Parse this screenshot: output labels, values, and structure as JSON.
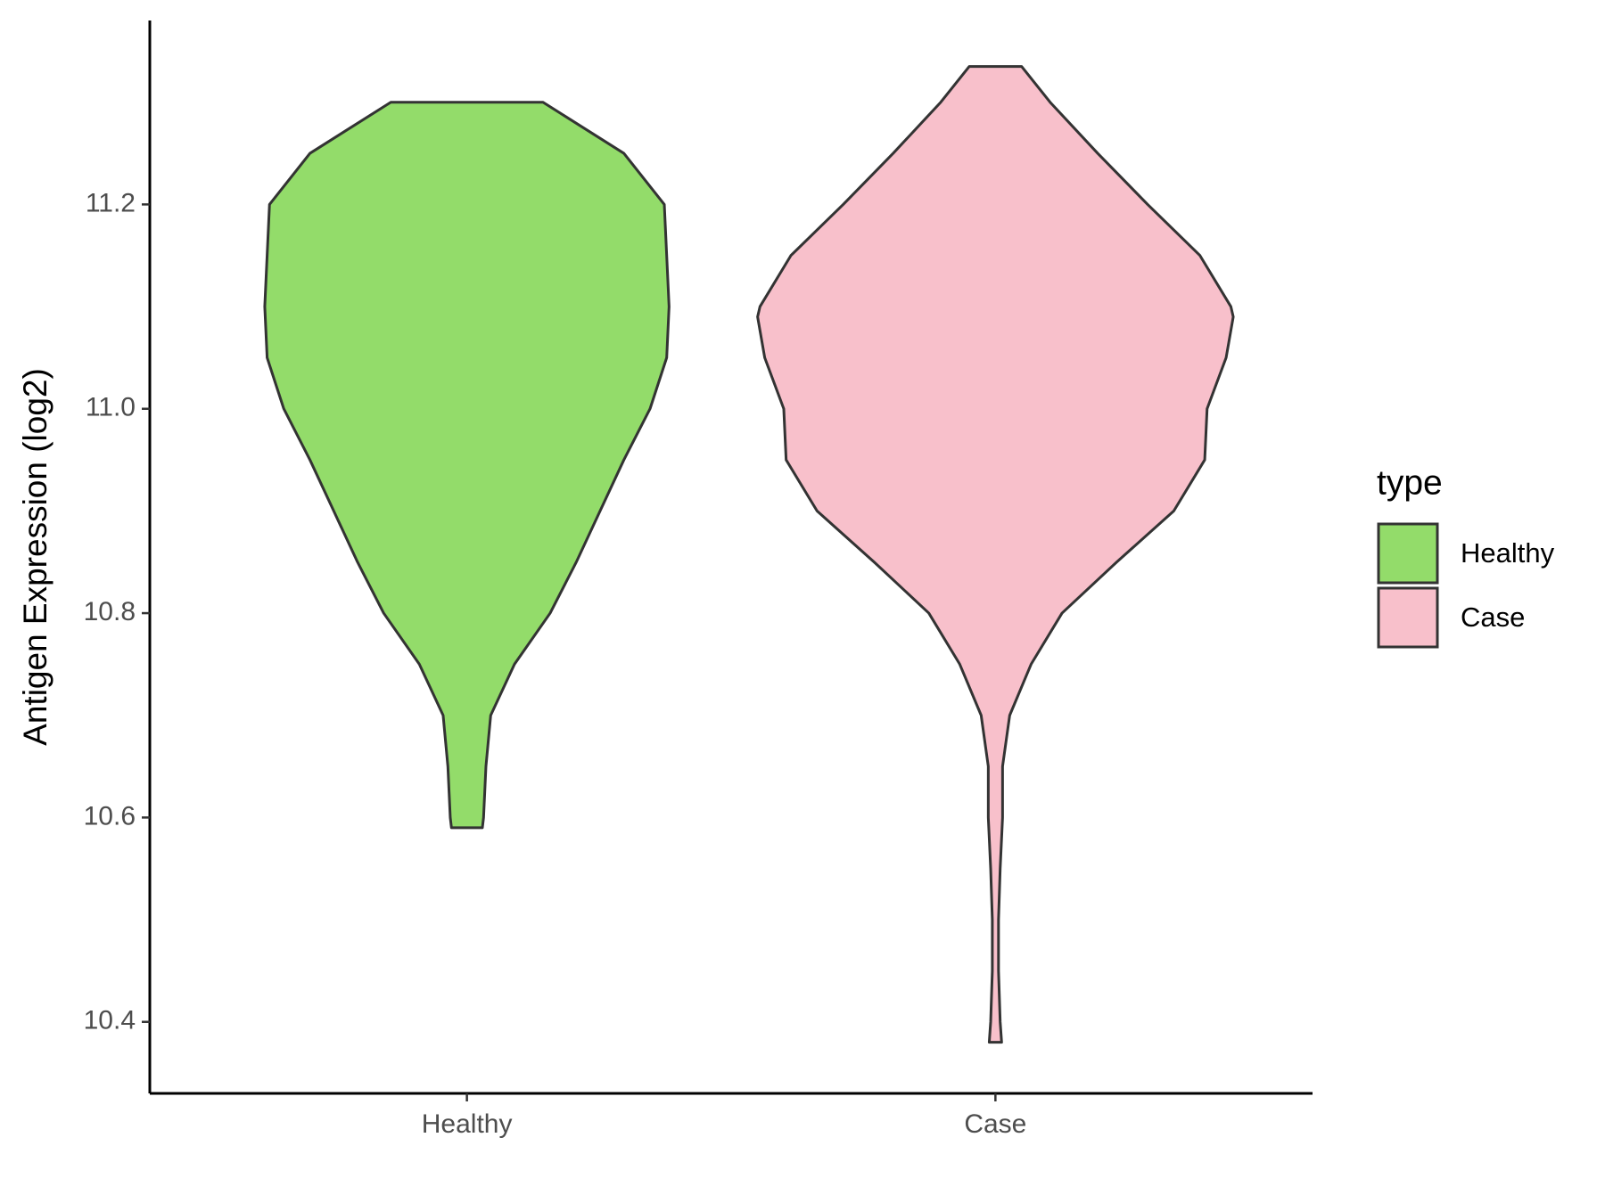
{
  "chart_data": {
    "type": "violin",
    "y_label": "Antigen Expression (log2)",
    "categories": [
      "Healthy",
      "Case"
    ],
    "ylim": [
      10.33,
      11.38
    ],
    "yticks": [
      {
        "value": 10.4,
        "label": "10.4"
      },
      {
        "value": 10.6,
        "label": "10.6"
      },
      {
        "value": 10.8,
        "label": "10.8"
      },
      {
        "value": 11.0,
        "label": "11.0"
      },
      {
        "value": 11.2,
        "label": "11.2"
      }
    ],
    "legend_title": "type",
    "legend_position": "right",
    "series": [
      {
        "name": "Healthy",
        "color": "#93dc6a",
        "y": [
          11.3,
          11.25,
          11.2,
          11.15,
          11.1,
          11.05,
          11.0,
          10.95,
          10.9,
          10.85,
          10.8,
          10.75,
          10.7,
          10.65,
          10.6,
          10.59
        ],
        "density": [
          0.32,
          0.66,
          0.83,
          0.84,
          0.85,
          0.84,
          0.77,
          0.66,
          0.56,
          0.46,
          0.35,
          0.2,
          0.1,
          0.08,
          0.07,
          0.065
        ]
      },
      {
        "name": "Case",
        "color": "#f8c0cb",
        "y": [
          11.335,
          11.3,
          11.25,
          11.2,
          11.15,
          11.1,
          11.09,
          11.05,
          11.0,
          10.95,
          10.9,
          10.85,
          10.8,
          10.75,
          10.7,
          10.65,
          10.6,
          10.55,
          10.5,
          10.45,
          10.4,
          10.38
        ],
        "density": [
          0.11,
          0.23,
          0.43,
          0.64,
          0.86,
          0.99,
          1.0,
          0.97,
          0.89,
          0.88,
          0.75,
          0.51,
          0.28,
          0.15,
          0.06,
          0.03,
          0.03,
          0.02,
          0.013,
          0.013,
          0.02,
          0.026
        ]
      }
    ]
  }
}
